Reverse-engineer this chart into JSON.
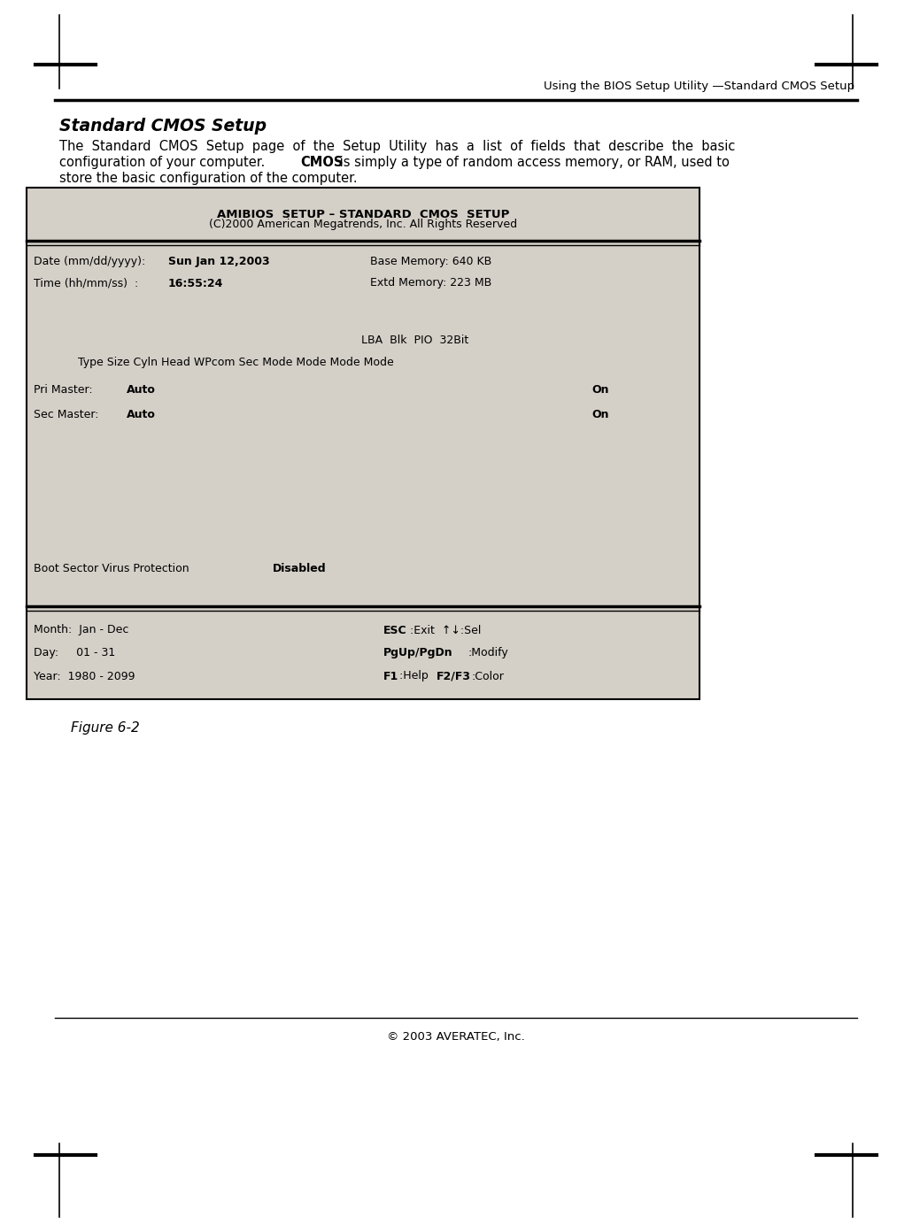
{
  "bg_color": "#ffffff",
  "box_bg": "#d4d0c8",
  "monospace_font": "Courier New",
  "figure_caption": "Figure 6-2",
  "copyright": "© 2003 AVERATEC, Inc.",
  "header_line_text": "Using the BIOS Setup Utility —Standard CMOS Setup",
  "title_text": "Standard CMOS Setup",
  "body1": "The  Standard  CMOS  Setup  page  of  the  Setup  Utility  has  a  list  of  fields  that  describe  the  basic",
  "body2a": "configuration of your computer. ",
  "body2b": "CMOS",
  "body2c": " is simply a type of random access memory, or RAM, used to",
  "body3": "store the basic configuration of the computer.",
  "bios_title": "AMIBIOS  SETUP – STANDARD  CMOS  SETUP",
  "bios_copy": "(C)2000 American Megatrends, Inc. All Rights Reserved",
  "date_label": "Date (mm/dd/yyyy): ",
  "date_value": "Sun Jan 12,2003",
  "date_right": "Base Memory: 640 KB",
  "time_label": "Time (hh/mm/ss)  : ",
  "time_value": "16:55:24",
  "time_right": "Extd Memory: 223 MB",
  "lba_line": "LBA  Blk  PIO  32Bit",
  "type_line": "     Type Size Cyln Head WPcom Sec Mode Mode Mode Mode",
  "pri_label": "Pri Master: ",
  "pri_value": "Auto",
  "pri_right": "On",
  "sec_label": "Sec Master: ",
  "sec_value": "Auto",
  "sec_right": "On",
  "boot_label": "Boot Sector Virus Protection    ",
  "boot_value": "Disabled",
  "month_label": "Month:  Jan - Dec",
  "month_right_bold": "ESC",
  "month_right_norm": ":Exit  ↑↓:Sel",
  "day_label": "Day:     01 - 31",
  "day_right_bold": "PgUp/PgDn",
  "day_right_norm": ":Modify",
  "year_label": "Year:  1980 - 2099",
  "year_right1_bold": "F1",
  "year_right1_norm": ":Help ",
  "year_right2_bold": "F2/F3",
  "year_right2_norm": ":Color"
}
